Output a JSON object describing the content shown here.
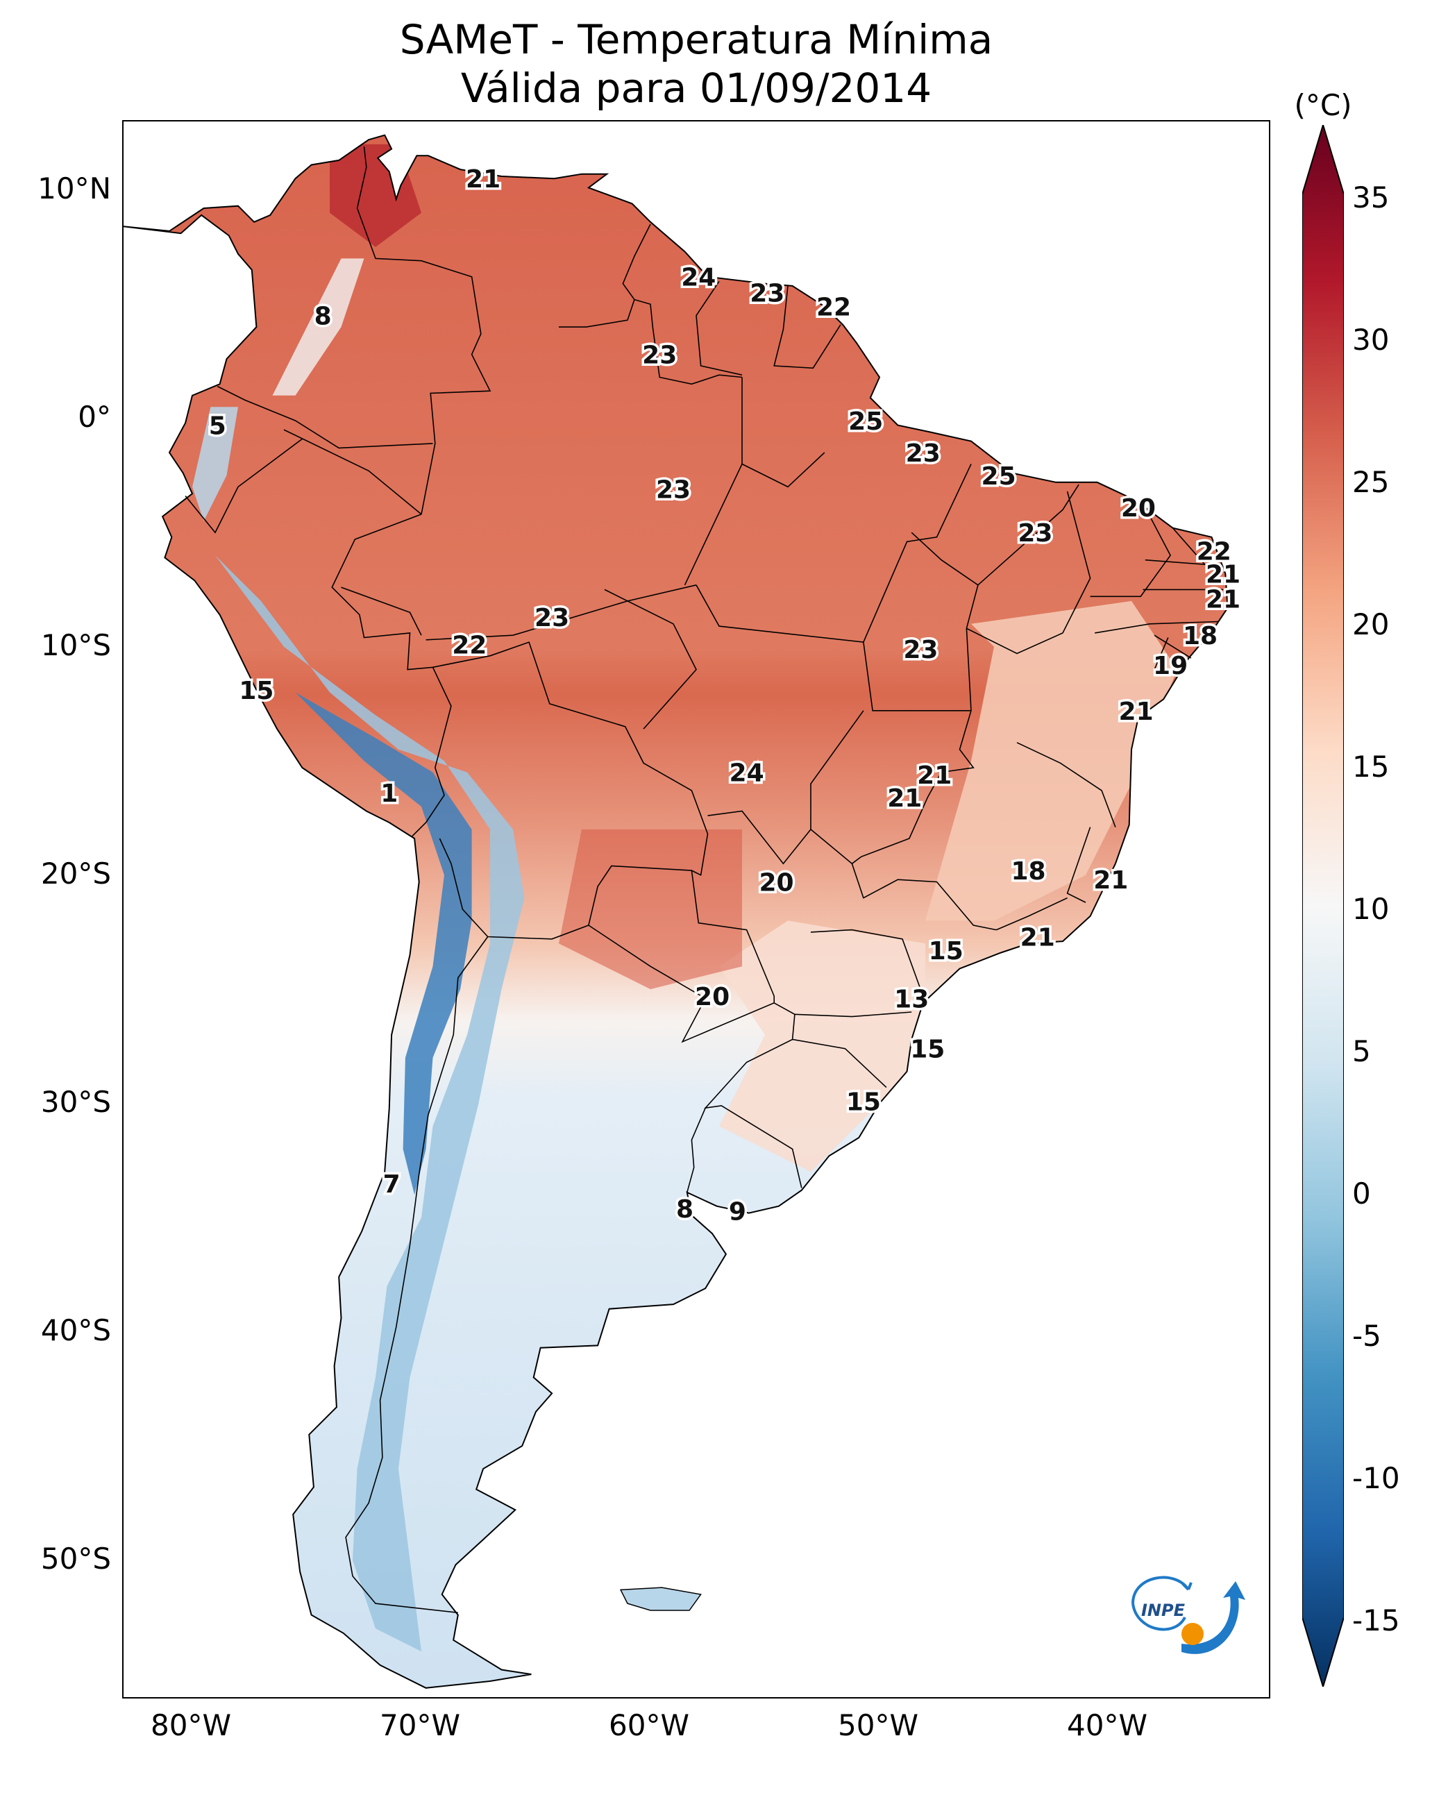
{
  "title": {
    "line1": "SAMeT - Temperatura Mínima",
    "line2": "Válida para 01/09/2014"
  },
  "axes": {
    "lat_ticks": [
      {
        "lat": 10,
        "label": "10°N"
      },
      {
        "lat": 0,
        "label": "0°"
      },
      {
        "lat": -10,
        "label": "10°S"
      },
      {
        "lat": -20,
        "label": "20°S"
      },
      {
        "lat": -30,
        "label": "30°S"
      },
      {
        "lat": -40,
        "label": "40°S"
      },
      {
        "lat": -50,
        "label": "50°S"
      }
    ],
    "lon_ticks": [
      {
        "lon": -80,
        "label": "80°W"
      },
      {
        "lon": -70,
        "label": "70°W"
      },
      {
        "lon": -60,
        "label": "60°W"
      },
      {
        "lon": -50,
        "label": "50°W"
      },
      {
        "lon": -40,
        "label": "40°W"
      }
    ],
    "lon_range": [
      -83,
      -33
    ],
    "lat_range": [
      -56,
      13
    ]
  },
  "colorbar": {
    "unit": "(°C)",
    "min": -15,
    "max": 35,
    "colormap": "RdBu_r",
    "ticks": [
      "35",
      "30",
      "25",
      "20",
      "15",
      "10",
      "5",
      "0",
      "-5",
      "-10",
      "-15"
    ],
    "extend": "both"
  },
  "value_labels": [
    {
      "lon": -67.3,
      "lat": 10.5,
      "value": "21"
    },
    {
      "lon": -74.3,
      "lat": 4.5,
      "value": "8"
    },
    {
      "lon": -57.9,
      "lat": 6.2,
      "value": "24"
    },
    {
      "lon": -54.9,
      "lat": 5.5,
      "value": "23"
    },
    {
      "lon": -52.0,
      "lat": 4.9,
      "value": "22"
    },
    {
      "lon": -59.6,
      "lat": 2.8,
      "value": "23"
    },
    {
      "lon": -78.9,
      "lat": -0.3,
      "value": "5"
    },
    {
      "lon": -50.6,
      "lat": -0.1,
      "value": "25"
    },
    {
      "lon": -48.1,
      "lat": -1.5,
      "value": "23"
    },
    {
      "lon": -44.8,
      "lat": -2.5,
      "value": "25"
    },
    {
      "lon": -59.0,
      "lat": -3.1,
      "value": "23"
    },
    {
      "lon": -38.7,
      "lat": -3.9,
      "value": "20"
    },
    {
      "lon": -43.2,
      "lat": -5.0,
      "value": "23"
    },
    {
      "lon": -35.4,
      "lat": -5.8,
      "value": "22"
    },
    {
      "lon": -35.0,
      "lat": -6.8,
      "value": "21"
    },
    {
      "lon": -35.0,
      "lat": -7.9,
      "value": "21"
    },
    {
      "lon": -64.3,
      "lat": -8.7,
      "value": "23"
    },
    {
      "lon": -67.9,
      "lat": -9.9,
      "value": "22"
    },
    {
      "lon": -36.0,
      "lat": -9.5,
      "value": "18"
    },
    {
      "lon": -48.2,
      "lat": -10.1,
      "value": "23"
    },
    {
      "lon": -37.3,
      "lat": -10.8,
      "value": "19"
    },
    {
      "lon": -77.2,
      "lat": -11.9,
      "value": "15"
    },
    {
      "lon": -38.8,
      "lat": -12.8,
      "value": "21"
    },
    {
      "lon": -55.8,
      "lat": -15.5,
      "value": "24"
    },
    {
      "lon": -47.6,
      "lat": -15.6,
      "value": "21"
    },
    {
      "lon": -48.9,
      "lat": -16.6,
      "value": "21"
    },
    {
      "lon": -71.4,
      "lat": -16.4,
      "value": "1"
    },
    {
      "lon": -43.5,
      "lat": -19.8,
      "value": "18"
    },
    {
      "lon": -39.9,
      "lat": -20.2,
      "value": "21"
    },
    {
      "lon": -54.5,
      "lat": -20.3,
      "value": "20"
    },
    {
      "lon": -43.1,
      "lat": -22.7,
      "value": "21"
    },
    {
      "lon": -47.1,
      "lat": -23.3,
      "value": "15"
    },
    {
      "lon": -57.3,
      "lat": -25.3,
      "value": "20"
    },
    {
      "lon": -48.6,
      "lat": -25.4,
      "value": "13"
    },
    {
      "lon": -47.9,
      "lat": -27.6,
      "value": "15"
    },
    {
      "lon": -50.7,
      "lat": -29.9,
      "value": "15"
    },
    {
      "lon": -71.3,
      "lat": -33.5,
      "value": "7"
    },
    {
      "lon": -58.5,
      "lat": -34.6,
      "value": "8"
    },
    {
      "lon": -56.2,
      "lat": -34.7,
      "value": "9"
    }
  ],
  "logo": {
    "text": "INPE",
    "colors": {
      "blue": "#1f7ac7",
      "orange": "#f39200"
    }
  }
}
